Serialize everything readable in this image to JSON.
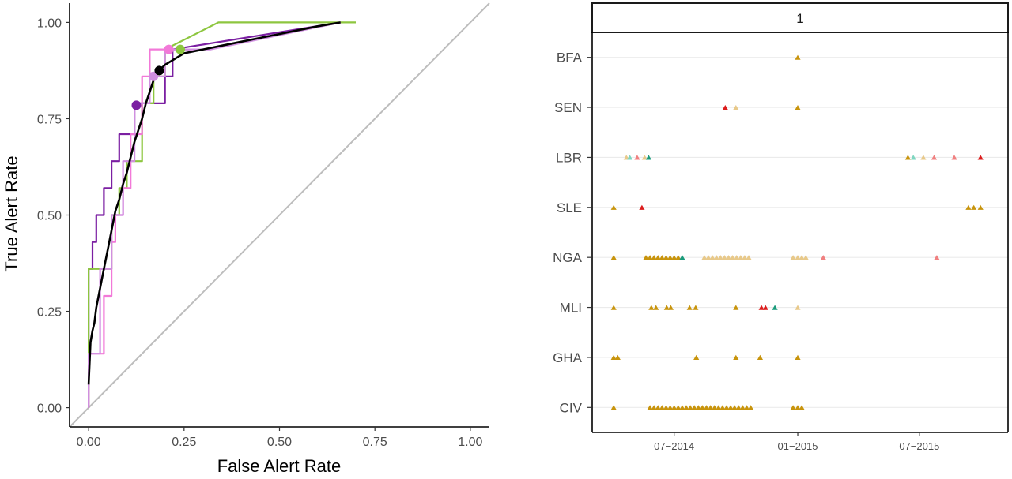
{
  "chart_data": [
    {
      "type": "line",
      "xlabel": "False Alert Rate",
      "ylabel": "True Alert Rate",
      "xlim": [
        -0.05,
        1.05
      ],
      "ylim": [
        -0.05,
        1.05
      ],
      "x_ticks": [
        0.0,
        0.25,
        0.5,
        0.75,
        1.0
      ],
      "x_tick_labels": [
        "0.00",
        "0.25",
        "0.50",
        "0.75",
        "1.00"
      ],
      "y_ticks": [
        0.0,
        0.25,
        0.5,
        0.75,
        1.0
      ],
      "y_tick_labels": [
        "0.00",
        "0.25",
        "0.50",
        "0.75",
        "1.00"
      ],
      "grid": false,
      "reference_line": {
        "x": [
          -0.05,
          1.05
        ],
        "y": [
          -0.05,
          1.05
        ],
        "color": "#bdbdbd"
      },
      "series": [
        {
          "color": "#7b1fa2",
          "x": [
            0.0,
            0.0,
            0.01,
            0.01,
            0.02,
            0.02,
            0.03,
            0.03,
            0.04,
            0.04,
            0.05,
            0.05,
            0.06,
            0.06,
            0.08,
            0.08,
            0.1,
            0.1,
            0.12,
            0.12,
            0.14,
            0.14,
            0.17,
            0.17,
            0.2,
            0.2,
            0.22,
            0.22,
            0.66
          ],
          "y": [
            0.0,
            0.36,
            0.36,
            0.43,
            0.43,
            0.5,
            0.5,
            0.5,
            0.5,
            0.57,
            0.57,
            0.57,
            0.57,
            0.64,
            0.64,
            0.71,
            0.71,
            0.71,
            0.71,
            0.79,
            0.79,
            0.79,
            0.79,
            0.79,
            0.79,
            0.86,
            0.86,
            0.93,
            1.0
          ],
          "point": {
            "x": 0.125,
            "y": 0.785
          }
        },
        {
          "color": "#8dc63f",
          "x": [
            0.0,
            0.0,
            0.02,
            0.02,
            0.06,
            0.06,
            0.08,
            0.08,
            0.1,
            0.1,
            0.14,
            0.14,
            0.17,
            0.17,
            0.2,
            0.2,
            0.34,
            0.7
          ],
          "y": [
            0.0,
            0.36,
            0.36,
            0.36,
            0.36,
            0.5,
            0.5,
            0.57,
            0.57,
            0.64,
            0.64,
            0.79,
            0.79,
            0.86,
            0.86,
            0.93,
            1.0,
            1.0
          ],
          "point": {
            "x": 0.24,
            "y": 0.93
          }
        },
        {
          "color": "#f279d8",
          "x": [
            0.0,
            0.0,
            0.04,
            0.04,
            0.06,
            0.06,
            0.07,
            0.07,
            0.09,
            0.09,
            0.11,
            0.11,
            0.14,
            0.14,
            0.16,
            0.16,
            0.18,
            0.18,
            0.3,
            0.66
          ],
          "y": [
            0.0,
            0.14,
            0.14,
            0.29,
            0.29,
            0.43,
            0.43,
            0.5,
            0.5,
            0.57,
            0.57,
            0.71,
            0.71,
            0.86,
            0.86,
            0.93,
            0.93,
            0.93,
            0.93,
            1.0
          ],
          "point": {
            "x": 0.21,
            "y": 0.93
          }
        },
        {
          "color": "#d08fe0",
          "x": [
            0.0,
            0.0,
            0.03,
            0.03,
            0.06,
            0.06,
            0.09,
            0.09,
            0.12,
            0.12,
            0.16,
            0.16,
            0.2,
            0.2,
            0.32,
            0.66
          ],
          "y": [
            0.0,
            0.14,
            0.14,
            0.36,
            0.36,
            0.5,
            0.5,
            0.64,
            0.64,
            0.79,
            0.79,
            0.86,
            0.86,
            0.93,
            0.93,
            1.0
          ],
          "point": {
            "x": 0.17,
            "y": 0.86
          }
        },
        {
          "color": "#000000",
          "x": [
            0.0,
            0.005,
            0.01,
            0.015,
            0.02,
            0.03,
            0.04,
            0.05,
            0.06,
            0.07,
            0.08,
            0.09,
            0.1,
            0.11,
            0.12,
            0.13,
            0.14,
            0.15,
            0.16,
            0.17,
            0.18,
            0.2,
            0.25,
            0.3,
            0.35,
            0.4,
            0.45,
            0.5,
            0.55,
            0.6,
            0.66
          ],
          "y": [
            0.06,
            0.17,
            0.2,
            0.22,
            0.26,
            0.31,
            0.36,
            0.41,
            0.46,
            0.51,
            0.54,
            0.58,
            0.61,
            0.65,
            0.69,
            0.72,
            0.75,
            0.79,
            0.82,
            0.85,
            0.87,
            0.89,
            0.92,
            0.93,
            0.94,
            0.95,
            0.96,
            0.97,
            0.98,
            0.99,
            1.0
          ],
          "point": {
            "x": 0.185,
            "y": 0.875
          }
        }
      ]
    },
    {
      "type": "scatter",
      "facet_label": "1",
      "categories": [
        "BFA",
        "SEN",
        "LBR",
        "SLE",
        "NGA",
        "MLI",
        "GHA",
        "CIV"
      ],
      "x_tick_dates": [
        "2014-07-01",
        "2015-01-01",
        "2015-07-01"
      ],
      "x_tick_labels": [
        "07−2014",
        "01−2015",
        "07−2015"
      ],
      "xlim": [
        "2014-03-01",
        "2015-11-10"
      ],
      "grid": "horizontal",
      "marker": "triangle",
      "colors": {
        "gold": "#c8940c",
        "light_gold": "#e8c98a",
        "red": "#dc1c1c",
        "pink": "#f08080",
        "teal": "#1a9b7b",
        "light_teal": "#7fd6c0"
      },
      "points": [
        {
          "cat": "BFA",
          "date": "2015-01-01",
          "color": "gold"
        },
        {
          "cat": "SEN",
          "date": "2014-09-15",
          "color": "red"
        },
        {
          "cat": "SEN",
          "date": "2014-10-01",
          "color": "light_gold"
        },
        {
          "cat": "SEN",
          "date": "2015-01-01",
          "color": "gold"
        },
        {
          "cat": "LBR",
          "date": "2014-04-21",
          "color": "light_gold"
        },
        {
          "cat": "LBR",
          "date": "2014-04-26",
          "color": "light_teal"
        },
        {
          "cat": "LBR",
          "date": "2014-05-07",
          "color": "pink"
        },
        {
          "cat": "LBR",
          "date": "2014-05-18",
          "color": "light_gold"
        },
        {
          "cat": "LBR",
          "date": "2014-05-24",
          "color": "teal"
        },
        {
          "cat": "LBR",
          "date": "2015-06-14",
          "color": "gold"
        },
        {
          "cat": "LBR",
          "date": "2015-06-22",
          "color": "light_teal"
        },
        {
          "cat": "LBR",
          "date": "2015-07-07",
          "color": "light_gold"
        },
        {
          "cat": "LBR",
          "date": "2015-07-23",
          "color": "pink"
        },
        {
          "cat": "LBR",
          "date": "2015-08-22",
          "color": "pink"
        },
        {
          "cat": "LBR",
          "date": "2015-09-30",
          "color": "red"
        },
        {
          "cat": "SLE",
          "date": "2014-04-02",
          "color": "gold"
        },
        {
          "cat": "SLE",
          "date": "2014-05-14",
          "color": "red"
        },
        {
          "cat": "SLE",
          "date": "2015-09-12",
          "color": "gold"
        },
        {
          "cat": "SLE",
          "date": "2015-09-20",
          "color": "gold"
        },
        {
          "cat": "SLE",
          "date": "2015-09-30",
          "color": "gold"
        },
        {
          "cat": "NGA",
          "date": "2014-04-02",
          "color": "gold"
        },
        {
          "cat": "NGA",
          "date": "2014-05-20",
          "color": "gold"
        },
        {
          "cat": "NGA",
          "date": "2014-05-26",
          "color": "gold"
        },
        {
          "cat": "NGA",
          "date": "2014-06-01",
          "color": "gold"
        },
        {
          "cat": "NGA",
          "date": "2014-06-07",
          "color": "gold"
        },
        {
          "cat": "NGA",
          "date": "2014-06-13",
          "color": "gold"
        },
        {
          "cat": "NGA",
          "date": "2014-06-19",
          "color": "gold"
        },
        {
          "cat": "NGA",
          "date": "2014-06-25",
          "color": "gold"
        },
        {
          "cat": "NGA",
          "date": "2014-07-01",
          "color": "gold"
        },
        {
          "cat": "NGA",
          "date": "2014-07-07",
          "color": "gold"
        },
        {
          "cat": "NGA",
          "date": "2014-07-13",
          "color": "teal"
        },
        {
          "cat": "NGA",
          "date": "2014-08-15",
          "color": "light_gold"
        },
        {
          "cat": "NGA",
          "date": "2014-08-21",
          "color": "light_gold"
        },
        {
          "cat": "NGA",
          "date": "2014-08-27",
          "color": "light_gold"
        },
        {
          "cat": "NGA",
          "date": "2014-09-02",
          "color": "light_gold"
        },
        {
          "cat": "NGA",
          "date": "2014-09-08",
          "color": "light_gold"
        },
        {
          "cat": "NGA",
          "date": "2014-09-14",
          "color": "light_gold"
        },
        {
          "cat": "NGA",
          "date": "2014-09-20",
          "color": "light_gold"
        },
        {
          "cat": "NGA",
          "date": "2014-09-26",
          "color": "light_gold"
        },
        {
          "cat": "NGA",
          "date": "2014-10-02",
          "color": "light_gold"
        },
        {
          "cat": "NGA",
          "date": "2014-10-08",
          "color": "light_gold"
        },
        {
          "cat": "NGA",
          "date": "2014-10-14",
          "color": "light_gold"
        },
        {
          "cat": "NGA",
          "date": "2014-10-20",
          "color": "light_gold"
        },
        {
          "cat": "NGA",
          "date": "2014-12-25",
          "color": "light_gold"
        },
        {
          "cat": "NGA",
          "date": "2015-01-01",
          "color": "light_gold"
        },
        {
          "cat": "NGA",
          "date": "2015-01-07",
          "color": "light_gold"
        },
        {
          "cat": "NGA",
          "date": "2015-01-13",
          "color": "light_gold"
        },
        {
          "cat": "NGA",
          "date": "2015-02-08",
          "color": "pink"
        },
        {
          "cat": "NGA",
          "date": "2015-07-27",
          "color": "pink"
        },
        {
          "cat": "MLI",
          "date": "2014-04-02",
          "color": "gold"
        },
        {
          "cat": "MLI",
          "date": "2014-05-28",
          "color": "gold"
        },
        {
          "cat": "MLI",
          "date": "2014-06-04",
          "color": "gold"
        },
        {
          "cat": "MLI",
          "date": "2014-06-20",
          "color": "gold"
        },
        {
          "cat": "MLI",
          "date": "2014-06-26",
          "color": "gold"
        },
        {
          "cat": "MLI",
          "date": "2014-07-24",
          "color": "gold"
        },
        {
          "cat": "MLI",
          "date": "2014-08-02",
          "color": "gold"
        },
        {
          "cat": "MLI",
          "date": "2014-10-01",
          "color": "gold"
        },
        {
          "cat": "MLI",
          "date": "2014-11-08",
          "color": "red"
        },
        {
          "cat": "MLI",
          "date": "2014-11-14",
          "color": "red"
        },
        {
          "cat": "MLI",
          "date": "2014-11-28",
          "color": "teal"
        },
        {
          "cat": "MLI",
          "date": "2015-01-01",
          "color": "light_gold"
        },
        {
          "cat": "GHA",
          "date": "2014-04-02",
          "color": "gold"
        },
        {
          "cat": "GHA",
          "date": "2014-04-08",
          "color": "gold"
        },
        {
          "cat": "GHA",
          "date": "2014-08-03",
          "color": "gold"
        },
        {
          "cat": "GHA",
          "date": "2014-10-01",
          "color": "gold"
        },
        {
          "cat": "GHA",
          "date": "2014-11-06",
          "color": "gold"
        },
        {
          "cat": "GHA",
          "date": "2015-01-01",
          "color": "gold"
        },
        {
          "cat": "CIV",
          "date": "2014-04-02",
          "color": "gold"
        },
        {
          "cat": "CIV",
          "date": "2014-05-26",
          "color": "gold"
        },
        {
          "cat": "CIV",
          "date": "2014-06-01",
          "color": "gold"
        },
        {
          "cat": "CIV",
          "date": "2014-06-07",
          "color": "gold"
        },
        {
          "cat": "CIV",
          "date": "2014-06-13",
          "color": "gold"
        },
        {
          "cat": "CIV",
          "date": "2014-06-19",
          "color": "gold"
        },
        {
          "cat": "CIV",
          "date": "2014-06-25",
          "color": "gold"
        },
        {
          "cat": "CIV",
          "date": "2014-07-01",
          "color": "gold"
        },
        {
          "cat": "CIV",
          "date": "2014-07-07",
          "color": "gold"
        },
        {
          "cat": "CIV",
          "date": "2014-07-13",
          "color": "gold"
        },
        {
          "cat": "CIV",
          "date": "2014-07-19",
          "color": "gold"
        },
        {
          "cat": "CIV",
          "date": "2014-07-25",
          "color": "gold"
        },
        {
          "cat": "CIV",
          "date": "2014-07-31",
          "color": "gold"
        },
        {
          "cat": "CIV",
          "date": "2014-08-06",
          "color": "gold"
        },
        {
          "cat": "CIV",
          "date": "2014-08-12",
          "color": "gold"
        },
        {
          "cat": "CIV",
          "date": "2014-08-18",
          "color": "gold"
        },
        {
          "cat": "CIV",
          "date": "2014-08-24",
          "color": "gold"
        },
        {
          "cat": "CIV",
          "date": "2014-08-30",
          "color": "gold"
        },
        {
          "cat": "CIV",
          "date": "2014-09-05",
          "color": "gold"
        },
        {
          "cat": "CIV",
          "date": "2014-09-11",
          "color": "gold"
        },
        {
          "cat": "CIV",
          "date": "2014-09-17",
          "color": "gold"
        },
        {
          "cat": "CIV",
          "date": "2014-09-23",
          "color": "gold"
        },
        {
          "cat": "CIV",
          "date": "2014-09-29",
          "color": "gold"
        },
        {
          "cat": "CIV",
          "date": "2014-10-05",
          "color": "gold"
        },
        {
          "cat": "CIV",
          "date": "2014-10-11",
          "color": "gold"
        },
        {
          "cat": "CIV",
          "date": "2014-10-17",
          "color": "gold"
        },
        {
          "cat": "CIV",
          "date": "2014-10-23",
          "color": "gold"
        },
        {
          "cat": "CIV",
          "date": "2014-12-25",
          "color": "gold"
        },
        {
          "cat": "CIV",
          "date": "2015-01-01",
          "color": "gold"
        },
        {
          "cat": "CIV",
          "date": "2015-01-07",
          "color": "gold"
        }
      ]
    }
  ]
}
